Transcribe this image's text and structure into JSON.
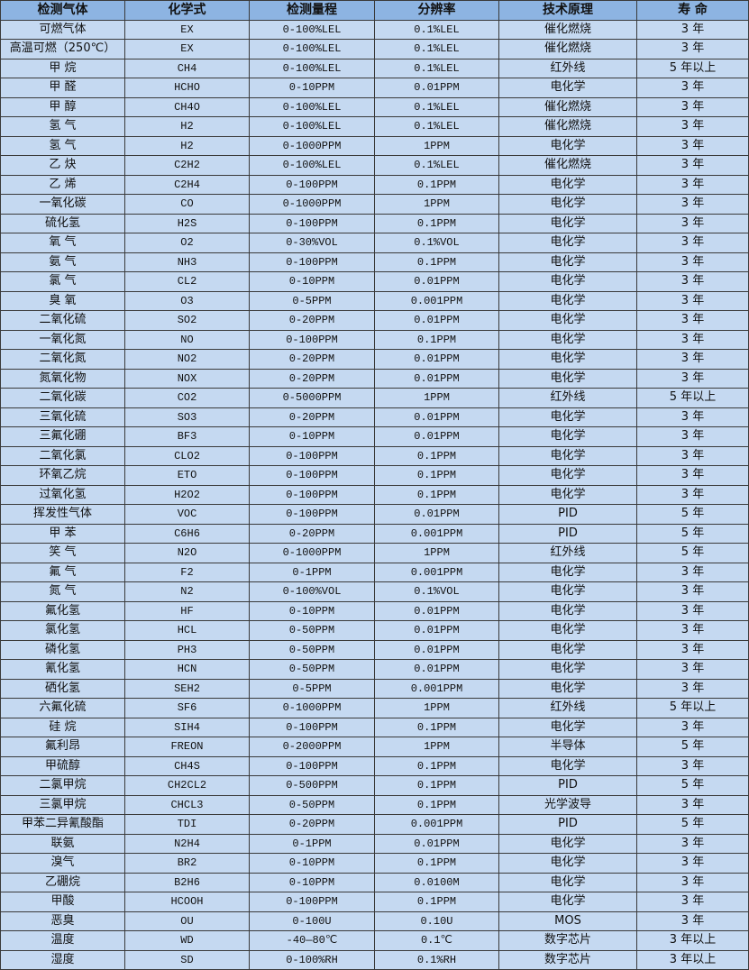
{
  "colors": {
    "header_bg": "#8db4e2",
    "cell_bg": "#c5d9f1",
    "border": "#3a3a3a"
  },
  "table": {
    "headers": [
      "检测气体",
      "化学式",
      "检测量程",
      "分辨率",
      "技术原理",
      "寿 命"
    ],
    "rows": [
      [
        "可燃气体",
        "EX",
        "0-100%LEL",
        "0.1%LEL",
        "催化燃烧",
        "3 年"
      ],
      [
        "高温可燃（250℃）",
        "EX",
        "0-100%LEL",
        "0.1%LEL",
        "催化燃烧",
        "3 年"
      ],
      [
        "甲 烷",
        "CH4",
        "0-100%LEL",
        "0.1%LEL",
        "红外线",
        "5 年以上"
      ],
      [
        "甲 醛",
        "HCHO",
        "0-10PPM",
        "0.01PPM",
        "电化学",
        "3 年"
      ],
      [
        "甲 醇",
        "CH4O",
        "0-100%LEL",
        "0.1%LEL",
        "催化燃烧",
        "3 年"
      ],
      [
        "氢 气",
        "H2",
        "0-100%LEL",
        "0.1%LEL",
        "催化燃烧",
        "3 年"
      ],
      [
        "氢 气",
        "H2",
        "0-1000PPM",
        "1PPM",
        "电化学",
        "3 年"
      ],
      [
        "乙 炔",
        "C2H2",
        "0-100%LEL",
        "0.1%LEL",
        "催化燃烧",
        "3 年"
      ],
      [
        "乙 烯",
        "C2H4",
        "0-100PPM",
        "0.1PPM",
        "电化学",
        "3 年"
      ],
      [
        "一氧化碳",
        "CO",
        "0-1000PPM",
        "1PPM",
        "电化学",
        "3 年"
      ],
      [
        "硫化氢",
        "H2S",
        "0-100PPM",
        "0.1PPM",
        "电化学",
        "3 年"
      ],
      [
        "氧 气",
        "O2",
        "0-30%VOL",
        "0.1%VOL",
        "电化学",
        "3 年"
      ],
      [
        "氨 气",
        "NH3",
        "0-100PPM",
        "0.1PPM",
        "电化学",
        "3 年"
      ],
      [
        "氯 气",
        "CL2",
        "0-10PPM",
        "0.01PPM",
        "电化学",
        "3 年"
      ],
      [
        "臭 氧",
        "O3",
        "0-5PPM",
        "0.001PPM",
        "电化学",
        "3 年"
      ],
      [
        "二氧化硫",
        "SO2",
        "0-20PPM",
        "0.01PPM",
        "电化学",
        "3 年"
      ],
      [
        "一氧化氮",
        "NO",
        "0-100PPM",
        "0.1PPM",
        "电化学",
        "3 年"
      ],
      [
        "二氧化氮",
        "NO2",
        "0-20PPM",
        "0.01PPM",
        "电化学",
        "3 年"
      ],
      [
        "氮氧化物",
        "NOX",
        "0-20PPM",
        "0.01PPM",
        "电化学",
        "3 年"
      ],
      [
        "二氧化碳",
        "CO2",
        "0-5000PPM",
        "1PPM",
        "红外线",
        "5 年以上"
      ],
      [
        "三氧化硫",
        "SO3",
        "0-20PPM",
        "0.01PPM",
        "电化学",
        "3 年"
      ],
      [
        "三氟化硼",
        "BF3",
        "0-10PPM",
        "0.01PPM",
        "电化学",
        "3 年"
      ],
      [
        "二氧化氯",
        "CLO2",
        "0-100PPM",
        "0.1PPM",
        "电化学",
        "3 年"
      ],
      [
        "环氧乙烷",
        "ETO",
        "0-100PPM",
        "0.1PPM",
        "电化学",
        "3 年"
      ],
      [
        "过氧化氢",
        "H2O2",
        "0-100PPM",
        "0.1PPM",
        "电化学",
        "3 年"
      ],
      [
        "挥发性气体",
        "VOC",
        "0-100PPM",
        "0.01PPM",
        "PID",
        "5 年"
      ],
      [
        "甲 苯",
        "C6H6",
        "0-20PPM",
        "0.001PPM",
        "PID",
        "5 年"
      ],
      [
        "笑 气",
        "N2O",
        "0-1000PPM",
        "1PPM",
        "红外线",
        "5 年"
      ],
      [
        "氟 气",
        "F2",
        "0-1PPM",
        "0.001PPM",
        "电化学",
        "3 年"
      ],
      [
        "氮 气",
        "N2",
        "0-100%VOL",
        "0.1%VOL",
        "电化学",
        "3 年"
      ],
      [
        "氟化氢",
        "HF",
        "0-10PPM",
        "0.01PPM",
        "电化学",
        "3 年"
      ],
      [
        "氯化氢",
        "HCL",
        "0-50PPM",
        "0.01PPM",
        "电化学",
        "3 年"
      ],
      [
        "磷化氢",
        "PH3",
        "0-50PPM",
        "0.01PPM",
        "电化学",
        "3 年"
      ],
      [
        "氰化氢",
        "HCN",
        "0-50PPM",
        "0.01PPM",
        "电化学",
        "3 年"
      ],
      [
        "硒化氢",
        "SEH2",
        "0-5PPM",
        "0.001PPM",
        "电化学",
        "3 年"
      ],
      [
        "六氟化硫",
        "SF6",
        "0-1000PPM",
        "1PPM",
        "红外线",
        "5 年以上"
      ],
      [
        "硅 烷",
        "SIH4",
        "0-100PPM",
        "0.1PPM",
        "电化学",
        "3 年"
      ],
      [
        "氟利昂",
        "FREON",
        "0-2000PPM",
        "1PPM",
        "半导体",
        "5 年"
      ],
      [
        "甲硫醇",
        "CH4S",
        "0-100PPM",
        "0.1PPM",
        "电化学",
        "3 年"
      ],
      [
        "二氯甲烷",
        "CH2CL2",
        "0-500PPM",
        "0.1PPM",
        "PID",
        "5 年"
      ],
      [
        "三氯甲烷",
        "CHCL3",
        "0-50PPM",
        "0.1PPM",
        "光学波导",
        "3 年"
      ],
      [
        "甲苯二异氰酸酯",
        "TDI",
        "0-20PPM",
        "0.001PPM",
        "PID",
        "5 年"
      ],
      [
        "联氨",
        "N2H4",
        "0-1PPM",
        "0.01PPM",
        "电化学",
        "3 年"
      ],
      [
        "溴气",
        "BR2",
        "0-10PPM",
        "0.1PPM",
        "电化学",
        "3 年"
      ],
      [
        "乙硼烷",
        "B2H6",
        "0-10PPM",
        "0.0100M",
        "电化学",
        "3 年"
      ],
      [
        "甲酸",
        "HCOOH",
        "0-100PPM",
        "0.1PPM",
        "电化学",
        "3 年"
      ],
      [
        "恶臭",
        "OU",
        "0-100U",
        "0.10U",
        "MOS",
        "3 年"
      ],
      [
        "温度",
        "WD",
        "-40—80℃",
        "0.1℃",
        "数字芯片",
        "3 年以上"
      ],
      [
        "湿度",
        "SD",
        "0-100%RH",
        "0.1%RH",
        "数字芯片",
        "3 年以上"
      ]
    ]
  }
}
